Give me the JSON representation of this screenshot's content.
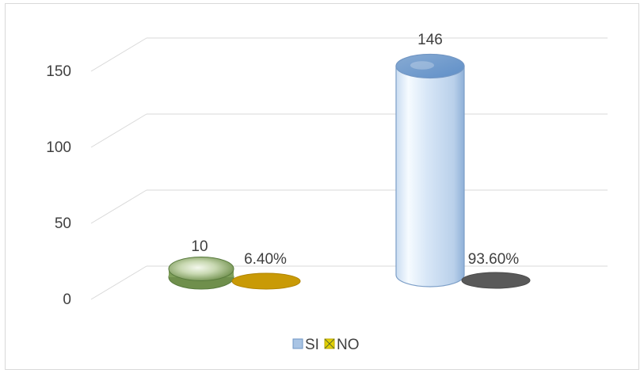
{
  "chart_data": {
    "type": "bar",
    "categories": [
      "",
      ""
    ],
    "series": [
      {
        "name": "SI",
        "values": [
          10,
          146
        ],
        "labels": [
          "10",
          "146"
        ],
        "color": "#a9c4e4"
      },
      {
        "name": "NO",
        "values": [
          0.064,
          0.936
        ],
        "labels": [
          "6.40%",
          "93.60%"
        ],
        "color": "#c99a06"
      }
    ],
    "title": "",
    "xlabel": "",
    "ylabel": "",
    "ylim": [
      0,
      150
    ],
    "yticks": [
      "0",
      "50",
      "100",
      "150"
    ],
    "grid": true,
    "style": "3d-cylinder",
    "legend_position": "bottom",
    "point_colors": {
      "si": [
        "#7f9f5a",
        "#a9c4e4"
      ],
      "no": [
        "#c99a06",
        "#595959"
      ]
    }
  }
}
